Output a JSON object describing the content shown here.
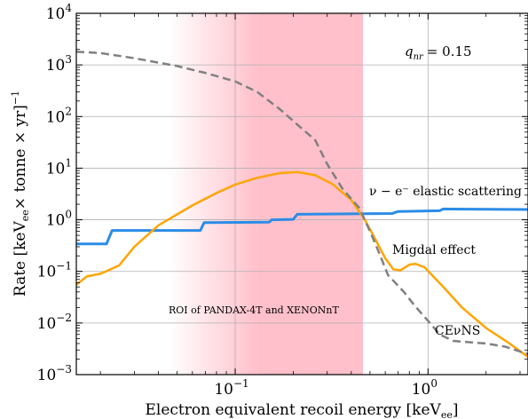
{
  "chart_data": {
    "type": "line",
    "x_scale": "log",
    "y_scale": "log",
    "xlim": [
      0.015,
      3.3
    ],
    "ylim": [
      0.001,
      10000
    ],
    "xlabel": "Electron equivalent recoil energy [keV",
    "xlabel_sub": "ee",
    "xlabel_end": "]",
    "ylabel": "Rate [keV",
    "ylabel_sub": "ee",
    "ylabel_mid": "× tonne × yr]",
    "ylabel_sup": "−1",
    "x_ticks": [
      {
        "value": 0.1,
        "base": "10",
        "exp": "−1"
      },
      {
        "value": 1,
        "base": "10",
        "exp": "0"
      }
    ],
    "y_ticks": [
      {
        "value": 0.001,
        "base": "10",
        "exp": "−3"
      },
      {
        "value": 0.01,
        "base": "10",
        "exp": "−2"
      },
      {
        "value": 0.1,
        "base": "10",
        "exp": "−1"
      },
      {
        "value": 1,
        "base": "10",
        "exp": "0"
      },
      {
        "value": 10,
        "base": "10",
        "exp": "1"
      },
      {
        "value": 100,
        "base": "10",
        "exp": "2"
      },
      {
        "value": 1000,
        "base": "10",
        "exp": "3"
      },
      {
        "value": 10000,
        "base": "10",
        "exp": "4"
      }
    ],
    "grid": true,
    "roi": {
      "x_start": 0.045,
      "x_end": 0.46,
      "x_solid_from": 0.13,
      "color": "#ffc0cb"
    },
    "roi_label": "ROI of PANDAX-4T and XENONnT",
    "roi_label_color": "#e8339b",
    "q_label": "q",
    "q_sub": "nr",
    "q_value": "= 0.15",
    "series": [
      {
        "name": "ν − e⁻ elastic scattering",
        "color": "#2b8ce6",
        "dash": "solid",
        "width": 3,
        "points": [
          [
            0.015,
            0.34
          ],
          [
            0.0215,
            0.34
          ],
          [
            0.023,
            0.62
          ],
          [
            0.066,
            0.62
          ],
          [
            0.069,
            0.88
          ],
          [
            0.15,
            0.9
          ],
          [
            0.155,
            1.0
          ],
          [
            0.2,
            1.02
          ],
          [
            0.21,
            1.28
          ],
          [
            0.65,
            1.32
          ],
          [
            0.7,
            1.45
          ],
          [
            1.15,
            1.5
          ],
          [
            1.2,
            1.62
          ],
          [
            3.3,
            1.58
          ]
        ]
      },
      {
        "name": "Migdal effect",
        "color": "#ffa500",
        "dash": "solid",
        "width": 2.5,
        "points": [
          [
            0.015,
            0.055
          ],
          [
            0.017,
            0.08
          ],
          [
            0.02,
            0.09
          ],
          [
            0.025,
            0.13
          ],
          [
            0.03,
            0.3
          ],
          [
            0.04,
            0.78
          ],
          [
            0.06,
            1.9
          ],
          [
            0.08,
            3.3
          ],
          [
            0.1,
            4.8
          ],
          [
            0.13,
            6.5
          ],
          [
            0.17,
            8.0
          ],
          [
            0.21,
            8.4
          ],
          [
            0.26,
            7.3
          ],
          [
            0.32,
            4.9
          ],
          [
            0.4,
            2.4
          ],
          [
            0.47,
            1.0
          ],
          [
            0.52,
            0.5
          ],
          [
            0.6,
            0.18
          ],
          [
            0.66,
            0.11
          ],
          [
            0.72,
            0.105
          ],
          [
            0.8,
            0.135
          ],
          [
            0.86,
            0.14
          ],
          [
            0.96,
            0.12
          ],
          [
            1.2,
            0.05
          ],
          [
            1.5,
            0.02
          ],
          [
            2.0,
            0.008
          ],
          [
            2.6,
            0.0042
          ],
          [
            3.3,
            0.0022
          ]
        ]
      },
      {
        "name": "CEνNS",
        "color": "#808080",
        "dash": "dashed",
        "width": 2.5,
        "points": [
          [
            0.015,
            1800
          ],
          [
            0.02,
            1700
          ],
          [
            0.03,
            1350
          ],
          [
            0.05,
            950
          ],
          [
            0.07,
            700
          ],
          [
            0.1,
            480
          ],
          [
            0.13,
            300
          ],
          [
            0.17,
            140
          ],
          [
            0.22,
            60
          ],
          [
            0.26,
            35
          ],
          [
            0.3,
            12
          ],
          [
            0.36,
            4
          ],
          [
            0.44,
            1.7
          ],
          [
            0.5,
            0.6
          ],
          [
            0.56,
            0.22
          ],
          [
            0.62,
            0.085
          ],
          [
            0.75,
            0.04
          ],
          [
            0.85,
            0.022
          ],
          [
            1.0,
            0.011
          ],
          [
            1.15,
            0.006
          ],
          [
            1.35,
            0.0045
          ],
          [
            1.7,
            0.0042
          ],
          [
            2.0,
            0.004
          ],
          [
            2.5,
            0.0035
          ],
          [
            3.3,
            0.0025
          ]
        ]
      }
    ],
    "labels": {
      "nu_e": "ν − e⁻ elastic scattering",
      "migdal": "Migdal effect",
      "cevns": "CEνNS"
    }
  }
}
